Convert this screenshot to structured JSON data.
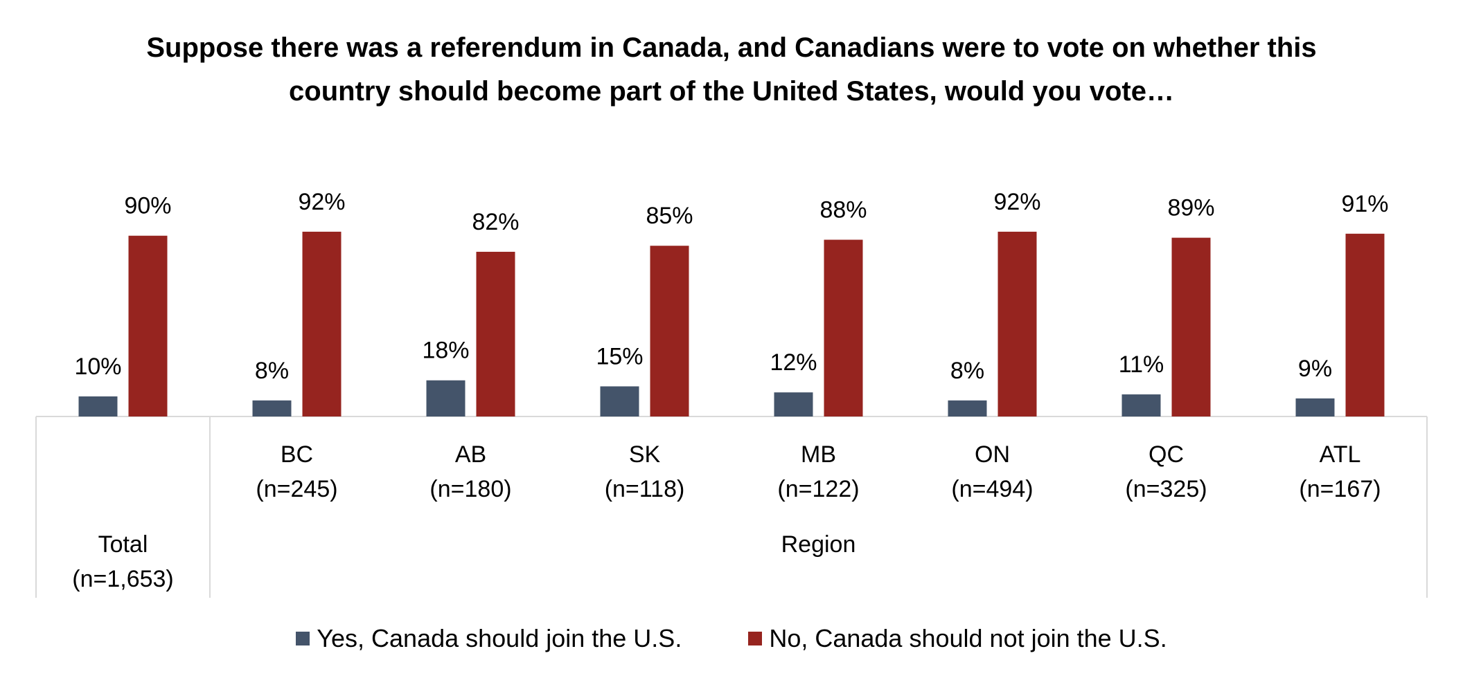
{
  "chart_data": {
    "type": "bar",
    "title": "Suppose there was a referendum in Canada, and Canadians were to vote on whether this country should become part of the United States, would you vote…",
    "categories": [
      {
        "label": "Total",
        "n": "(n=1,653)",
        "group": "Total"
      },
      {
        "label": "BC",
        "n": "(n=245)",
        "group": "Region"
      },
      {
        "label": "AB",
        "n": "(n=180)",
        "group": "Region"
      },
      {
        "label": "SK",
        "n": "(n=118)",
        "group": "Region"
      },
      {
        "label": "MB",
        "n": "(n=122)",
        "group": "Region"
      },
      {
        "label": "ON",
        "n": "(n=494)",
        "group": "Region"
      },
      {
        "label": "QC",
        "n": "(n=325)",
        "group": "Region"
      },
      {
        "label": "ATL",
        "n": "(n=167)",
        "group": "Region"
      }
    ],
    "groups": [
      "Total",
      "Region"
    ],
    "series": [
      {
        "name": "Yes, Canada should join the U.S.",
        "color": "#44546A",
        "values": [
          10,
          8,
          18,
          15,
          12,
          8,
          11,
          9
        ]
      },
      {
        "name": "No, Canada should not join the U.S.",
        "color": "#96241F",
        "values": [
          90,
          92,
          82,
          85,
          88,
          92,
          89,
          91
        ]
      }
    ],
    "value_suffix": "%",
    "ylim": [
      0,
      100
    ],
    "grid": false,
    "legend_position": "bottom"
  }
}
